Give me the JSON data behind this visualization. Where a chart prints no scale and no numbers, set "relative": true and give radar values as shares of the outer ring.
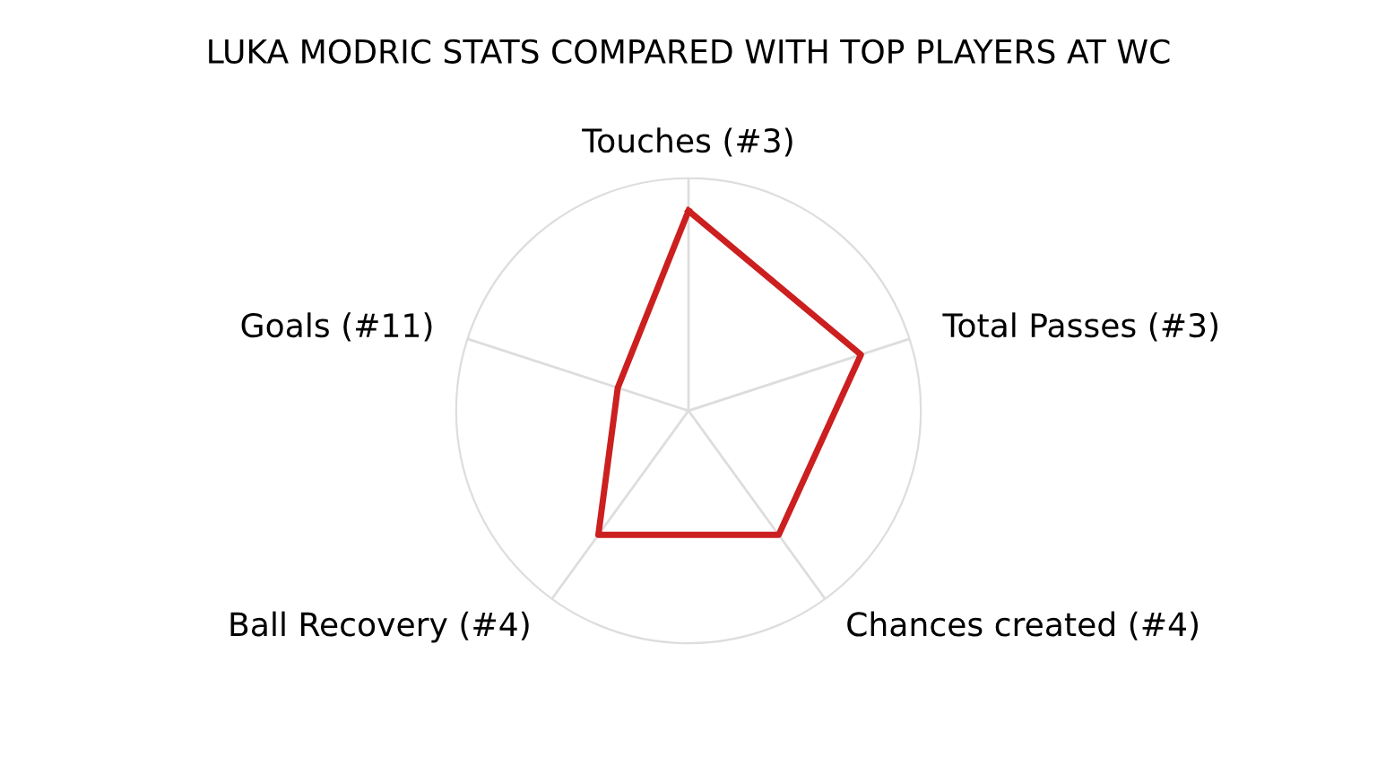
{
  "chart_data": {
    "type": "radar",
    "title": "LUKA MODRIC STATS COMPARED WITH TOP PLAYERS AT WC",
    "categories": [
      "Touches (#3)",
      "Total Passes (#3)",
      "Chances created (#4)",
      "Ball Recovery (#4)",
      "Goals (#11)"
    ],
    "relative": true,
    "grid": true,
    "series": [
      {
        "color": "#cc1f1f",
        "values": [
          0.86,
          0.78,
          0.66,
          0.66,
          0.32
        ]
      }
    ]
  }
}
